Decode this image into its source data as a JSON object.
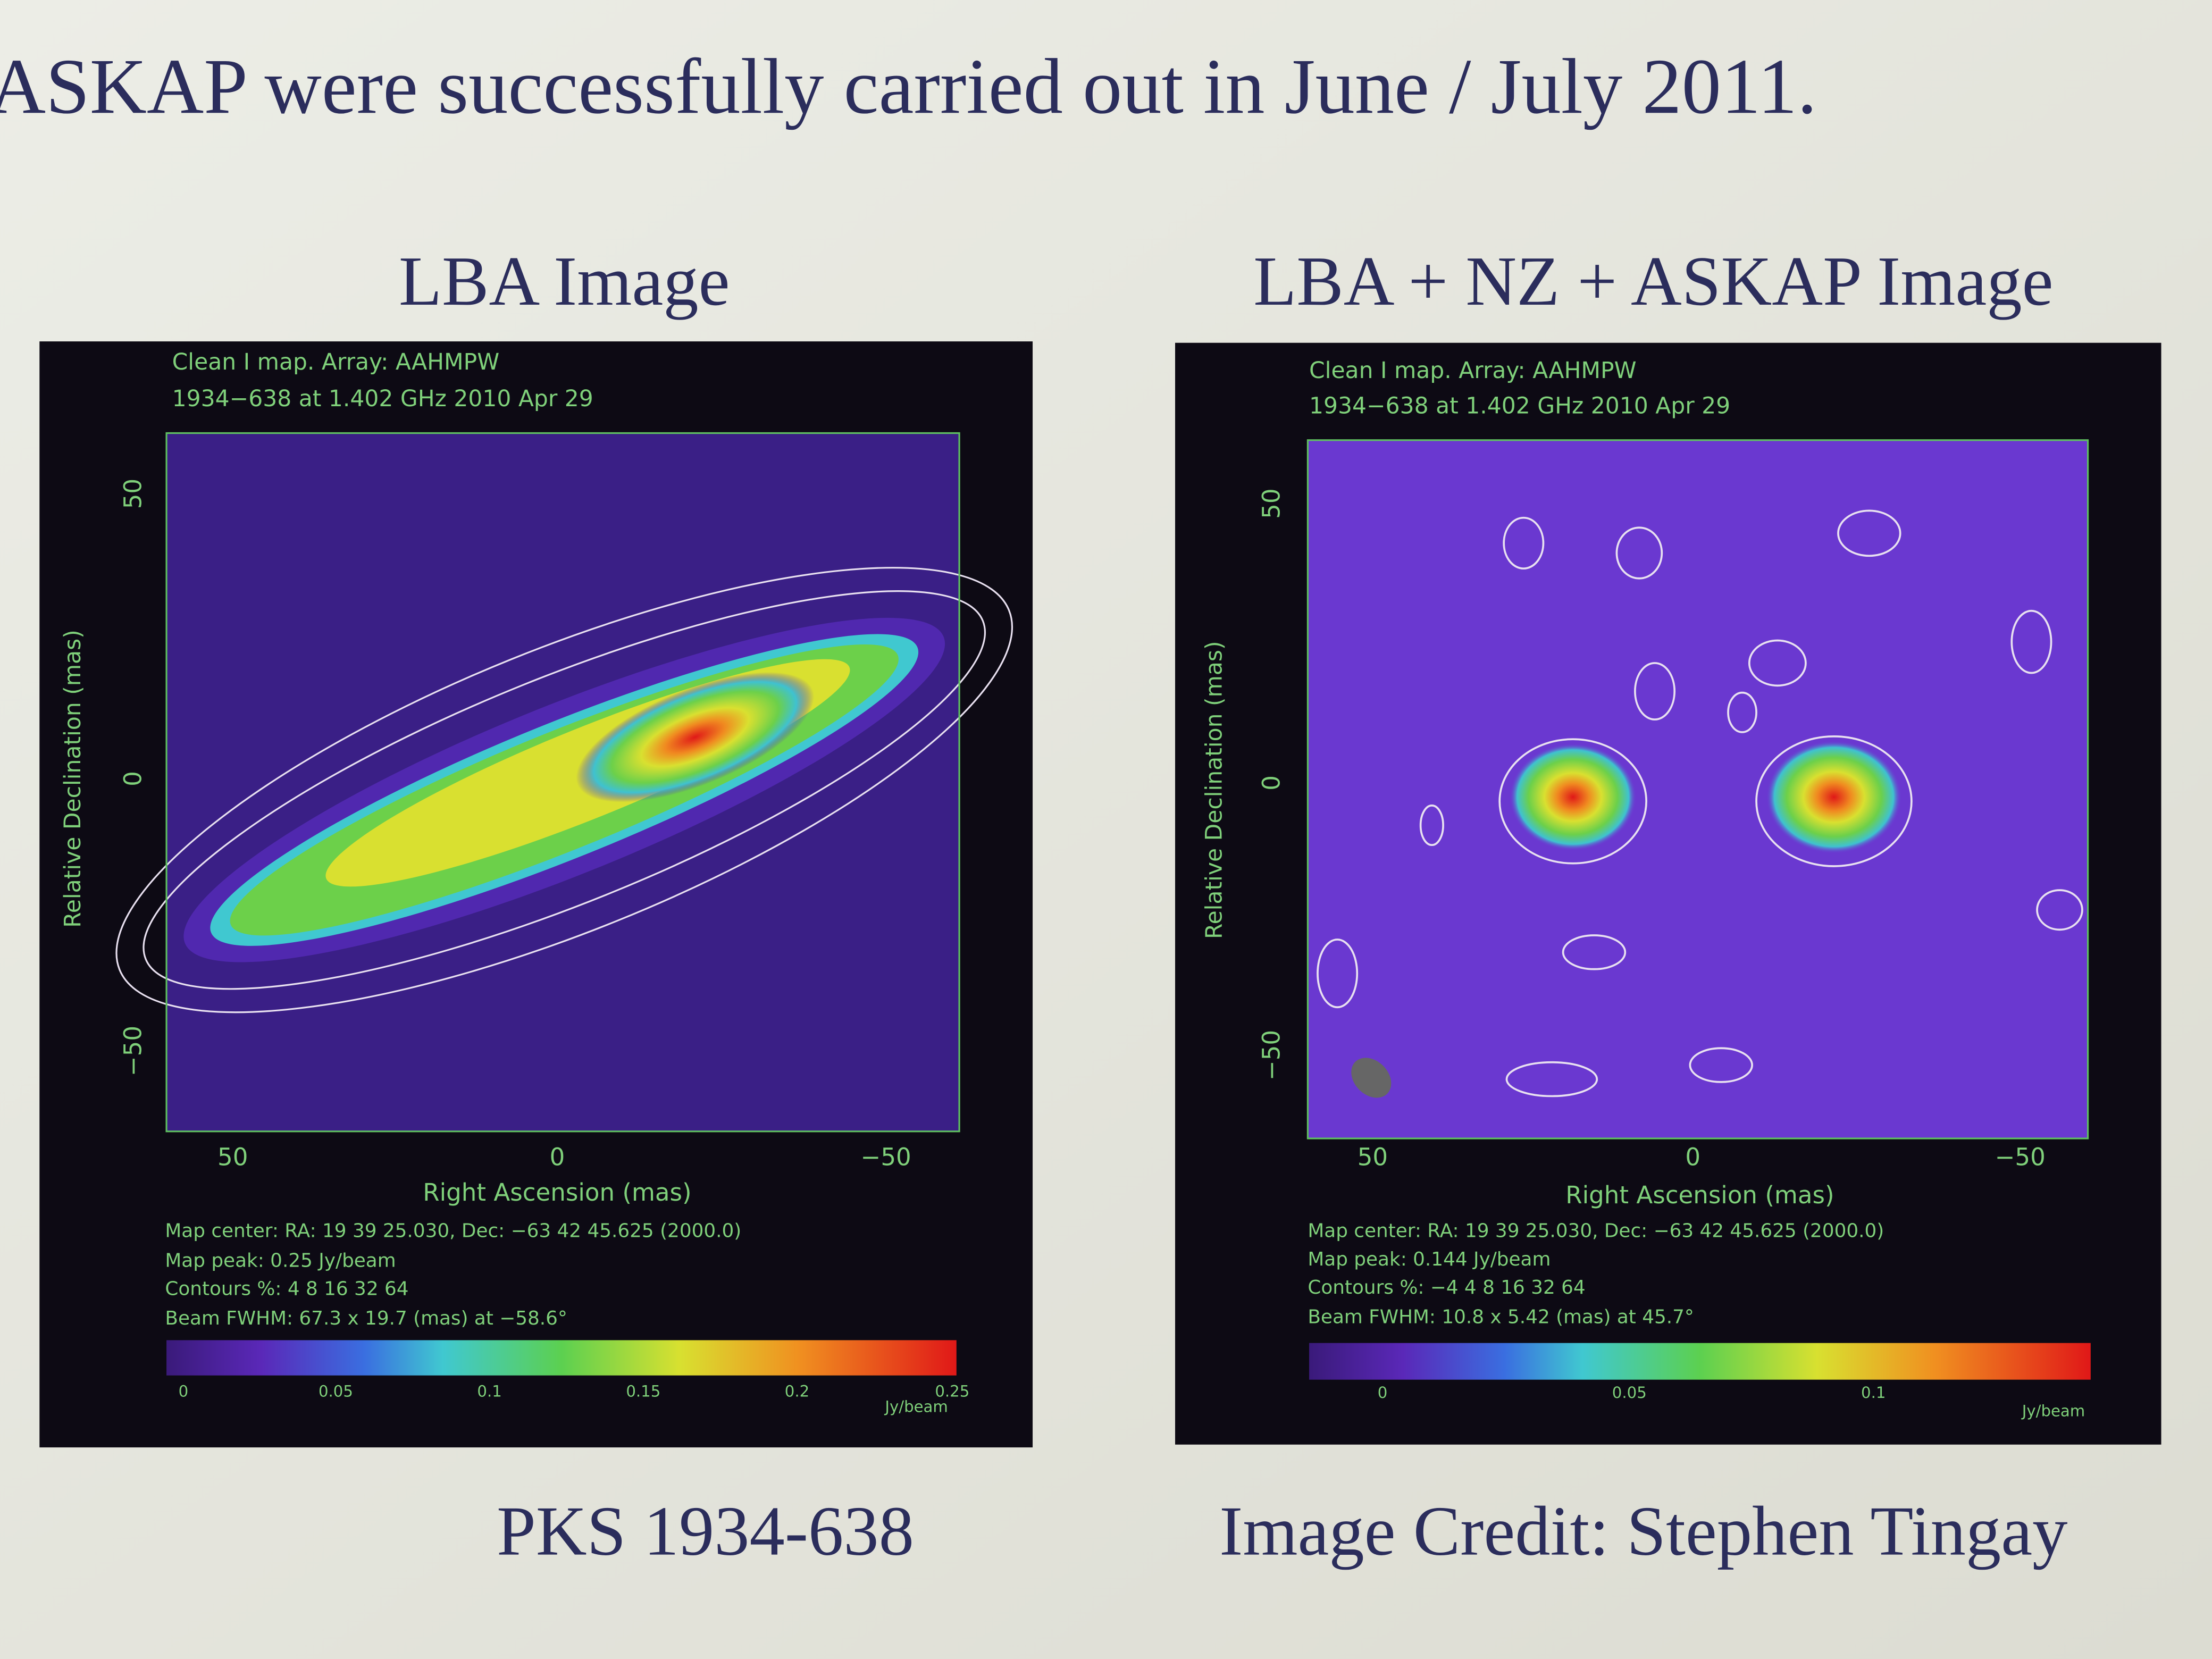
{
  "header": {
    "text": "ASKAP were successfully carried out in June / July 2011."
  },
  "panels": [
    {
      "title": "LBA Image",
      "map_label": "Clean I map.  Array:  AAHMPW",
      "source_line": "1934−638 at 1.402 GHz 2010 Apr 29",
      "y_label": "Relative Declination  (mas)",
      "x_label": "Right Ascension  (mas)",
      "x_ticks": [
        "50",
        "0",
        "−50"
      ],
      "y_ticks": [
        "50",
        "0",
        "−50"
      ],
      "info": [
        "Map center:  RA: 19 39 25.030,  Dec: −63 42 45.625 (2000.0)",
        "Map peak: 0.25 Jy/beam",
        "Contours %: 4 8 16 32 64",
        "Beam FWHM: 67.3 x 19.7 (mas) at −58.6°"
      ],
      "colorbar_ticks": [
        "0",
        "0.05",
        "0.1",
        "0.15",
        "0.2",
        "0.25"
      ],
      "colorbar_unit": "Jy/beam",
      "caption": "PKS 1934-638"
    },
    {
      "title": "LBA + NZ + ASKAP Image",
      "map_label": "Clean I map.  Array:  AAHMPW",
      "source_line": "1934−638 at 1.402 GHz 2010 Apr 29",
      "y_label": "Relative Declination  (mas)",
      "x_label": "Right Ascension  (mas)",
      "x_ticks": [
        "50",
        "0",
        "−50"
      ],
      "y_ticks": [
        "50",
        "0",
        "−50"
      ],
      "info": [
        "Map center:  RA: 19 39 25.030,  Dec: −63 42 45.625 (2000.0)",
        "Map peak: 0.144 Jy/beam",
        "Contours %: −4 4 8 16 32 64",
        "Beam FWHM: 10.8 x 5.42 (mas) at 45.7°"
      ],
      "colorbar_ticks": [
        "0",
        "0.05",
        "0.1"
      ],
      "colorbar_unit": "Jy/beam",
      "caption": "Image Credit: Stephen Tingay"
    }
  ]
}
